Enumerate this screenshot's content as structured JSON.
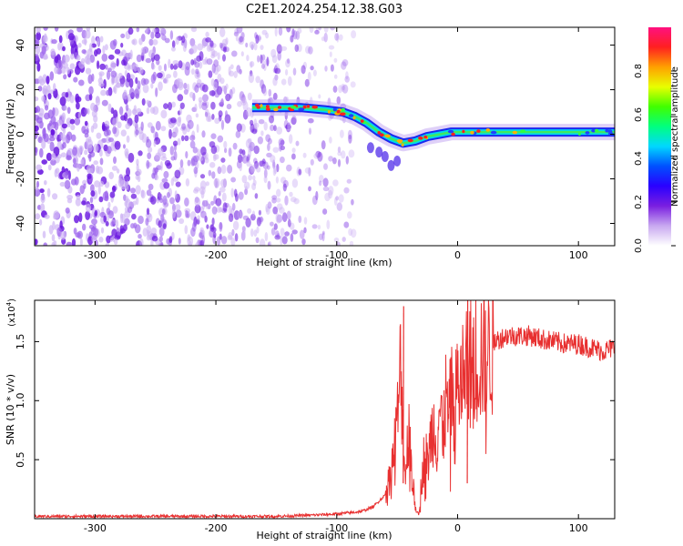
{
  "title": "C2E1.2024.254.12.38.G03",
  "chart_data": [
    {
      "type": "heatmap",
      "xlabel": "Height of straight line (km)",
      "ylabel": "Frequency (Hz)",
      "xlim": [
        -350,
        130
      ],
      "ylim": [
        -50,
        48
      ],
      "xticks": [
        -300,
        -200,
        -100,
        0,
        100
      ],
      "yticks": [
        -40,
        -20,
        0,
        20,
        40
      ],
      "grid": false,
      "colorbar": {
        "label": "Normalized spectral amplitude",
        "range": [
          0,
          1
        ],
        "ticks": [
          "0.0",
          "0.2",
          "0.4",
          "0.6",
          "0.8"
        ],
        "colors": [
          "#ffffff",
          "#c8a8f0",
          "#7a1fe0",
          "#2a00ff",
          "#0050ff",
          "#00d8ff",
          "#00ff80",
          "#40ff00",
          "#e8ff00",
          "#ffa000",
          "#ff2020",
          "#ff1080"
        ]
      },
      "ridge": {
        "x": [
          -170,
          -150,
          -130,
          -110,
          -95,
          -85,
          -75,
          -65,
          -55,
          -45,
          -35,
          -25,
          -15,
          -5,
          5,
          20,
          50,
          80,
          130
        ],
        "y": [
          12,
          12,
          12,
          11,
          10,
          8,
          5,
          1,
          -2,
          -4,
          -3,
          -1,
          0,
          1,
          1,
          1,
          1,
          1,
          1
        ]
      },
      "noise_region_x": [
        -350,
        -95
      ]
    },
    {
      "type": "line",
      "xlabel": "Height of straight line (km)",
      "ylabel": "SNR (10 * v/v)",
      "y_multiplier": "(x10^4)",
      "xlim": [
        -350,
        130
      ],
      "ylim": [
        0,
        1.85
      ],
      "xticks": [
        -300,
        -200,
        -100,
        0,
        100
      ],
      "yticks": [
        0.5,
        1.0,
        1.5
      ],
      "ytick_labels": [
        "0.5",
        "1.0",
        "1.5"
      ],
      "grid": false,
      "color": "#e83030",
      "x": [
        -350,
        -300,
        -250,
        -200,
        -150,
        -120,
        -100,
        -80,
        -70,
        -60,
        -55,
        -50,
        -47,
        -45,
        -43,
        -40,
        -38,
        -35,
        -32,
        -30,
        -27,
        -25,
        -22,
        -20,
        -17,
        -15,
        -12,
        -10,
        -7,
        -5,
        -2,
        0,
        5,
        10,
        20,
        30,
        40,
        50,
        60,
        70,
        80,
        90,
        100,
        110,
        120,
        130
      ],
      "y": [
        0.02,
        0.02,
        0.02,
        0.02,
        0.02,
        0.03,
        0.04,
        0.06,
        0.1,
        0.2,
        0.4,
        0.8,
        1.3,
        0.7,
        0.35,
        0.9,
        0.4,
        0.1,
        0.05,
        0.3,
        0.6,
        0.45,
        0.7,
        0.8,
        0.65,
        0.95,
        0.75,
        1.0,
        0.85,
        1.1,
        0.95,
        1.15,
        1.2,
        1.3,
        1.4,
        1.5,
        1.55,
        1.55,
        1.55,
        1.52,
        1.5,
        1.48,
        1.48,
        1.45,
        1.42,
        1.45
      ],
      "spikes": [
        {
          "x": -45,
          "y": 1.8
        },
        {
          "x": 8,
          "y": 1.85
        }
      ]
    }
  ]
}
